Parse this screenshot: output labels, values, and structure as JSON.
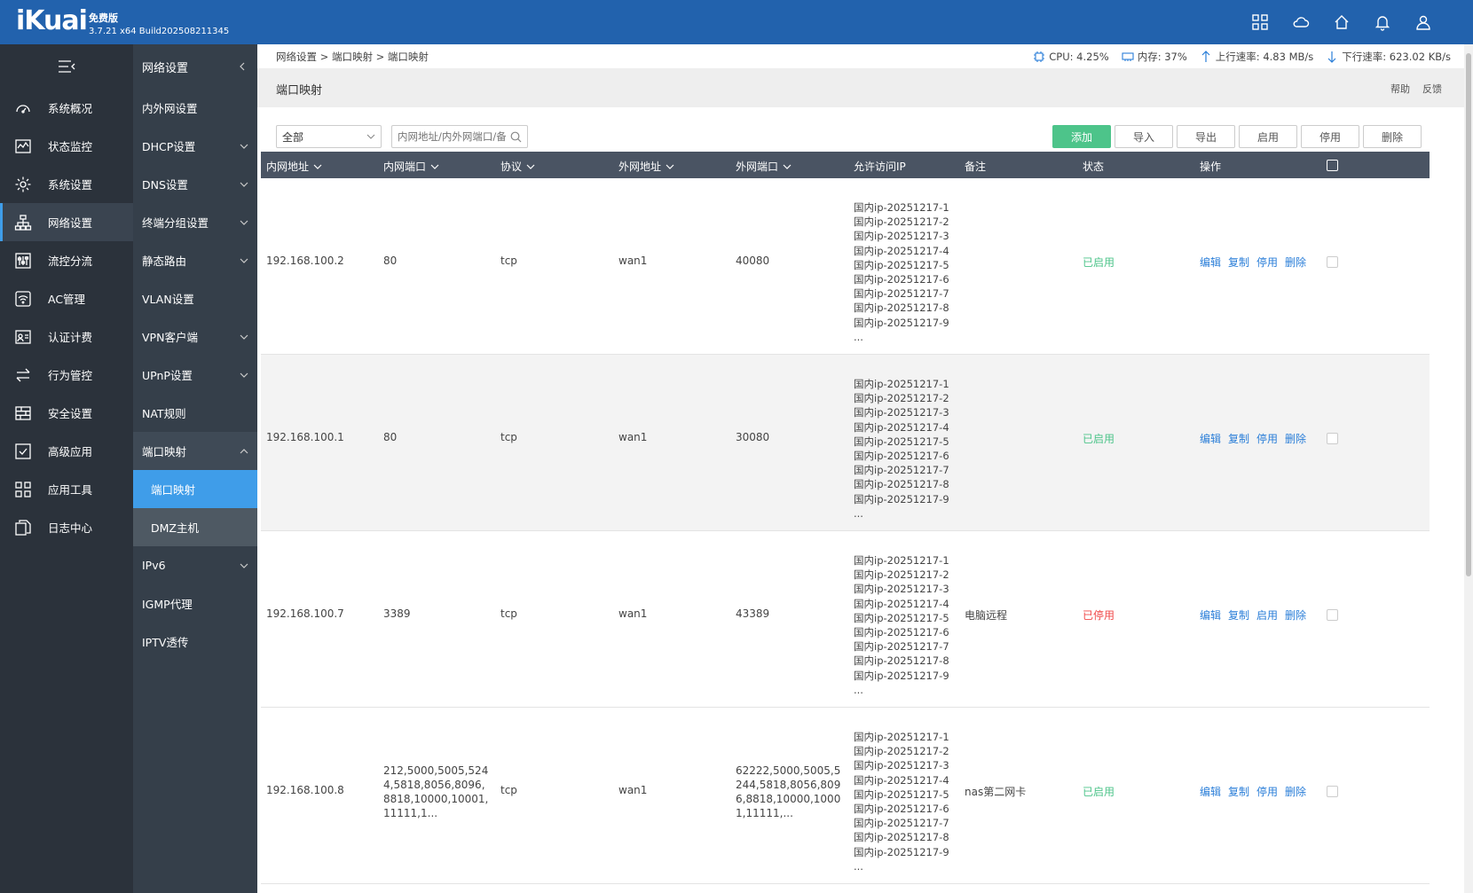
{
  "header": {
    "logo": "iKuai",
    "edition": "免费版",
    "build": "3.7.21 x64 Build202508211345"
  },
  "main_nav": [
    {
      "label": "系统概况",
      "icon": "gauge-icon"
    },
    {
      "label": "状态监控",
      "icon": "monitor-chart-icon"
    },
    {
      "label": "系统设置",
      "icon": "gear-icon"
    },
    {
      "label": "网络设置",
      "icon": "network-tree-icon",
      "active": true
    },
    {
      "label": "流控分流",
      "icon": "sliders-icon"
    },
    {
      "label": "AC管理",
      "icon": "wifi-icon"
    },
    {
      "label": "认证计费",
      "icon": "id-card-icon"
    },
    {
      "label": "行为管控",
      "icon": "swap-arrows-icon"
    },
    {
      "label": "安全设置",
      "icon": "firewall-icon"
    },
    {
      "label": "高级应用",
      "icon": "checklist-icon"
    },
    {
      "label": "应用工具",
      "icon": "apps-grid-icon"
    },
    {
      "label": "日志中心",
      "icon": "documents-icon"
    }
  ],
  "sub_nav": {
    "title": "网络设置",
    "items": [
      {
        "label": "内外网设置",
        "chevron": false
      },
      {
        "label": "DHCP设置",
        "chevron": true
      },
      {
        "label": "DNS设置",
        "chevron": true
      },
      {
        "label": "终端分组设置",
        "chevron": true
      },
      {
        "label": "静态路由",
        "chevron": true
      },
      {
        "label": "VLAN设置",
        "chevron": false
      },
      {
        "label": "VPN客户端",
        "chevron": true
      },
      {
        "label": "UPnP设置",
        "chevron": true
      },
      {
        "label": "NAT规则",
        "chevron": false
      },
      {
        "label": "端口映射",
        "chevron": true,
        "open": true
      },
      {
        "label": "端口映射",
        "sub": true,
        "selected": true
      },
      {
        "label": "DMZ主机",
        "sub": true
      },
      {
        "label": "IPv6",
        "chevron": true
      },
      {
        "label": "IGMP代理",
        "chevron": false
      },
      {
        "label": "IPTV透传",
        "chevron": false
      }
    ]
  },
  "breadcrumb": "网络设置 > 端口映射 > 端口映射",
  "stats": {
    "cpu": "CPU: 4.25%",
    "mem": "内存: 37%",
    "up": "上行速率: 4.83 MB/s",
    "down": "下行速率: 623.02 KB/s"
  },
  "page": {
    "title": "端口映射",
    "help": "帮助",
    "feedback": "反馈"
  },
  "toolbar": {
    "filter_value": "全部",
    "search_placeholder": "内网地址/内外网端口/备注",
    "add": "添加",
    "import": "导入",
    "export": "导出",
    "enable": "启用",
    "disable": "停用",
    "delete": "删除"
  },
  "columns": {
    "lan_addr": "内网地址",
    "lan_port": "内网端口",
    "protocol": "协议",
    "wan_addr": "外网地址",
    "wan_port": "外网端口",
    "allow_ip": "允许访问IP",
    "remark": "备注",
    "status": "状态",
    "ops": "操作"
  },
  "allowed_ips": [
    "国内ip-20251217-1",
    "国内ip-20251217-2",
    "国内ip-20251217-3",
    "国内ip-20251217-4",
    "国内ip-20251217-5",
    "国内ip-20251217-6",
    "国内ip-20251217-7",
    "国内ip-20251217-8",
    "国内ip-20251217-9",
    "..."
  ],
  "rows": [
    {
      "lan_addr": "192.168.100.2",
      "lan_port": "80",
      "protocol": "tcp",
      "wan_addr": "wan1",
      "wan_port": "40080",
      "remark": "",
      "status": "已启用",
      "enabled": true,
      "toggle": "停用"
    },
    {
      "lan_addr": "192.168.100.1",
      "lan_port": "80",
      "protocol": "tcp",
      "wan_addr": "wan1",
      "wan_port": "30080",
      "remark": "",
      "status": "已启用",
      "enabled": true,
      "toggle": "停用"
    },
    {
      "lan_addr": "192.168.100.7",
      "lan_port": "3389",
      "protocol": "tcp",
      "wan_addr": "wan1",
      "wan_port": "43389",
      "remark": "电脑远程",
      "status": "已停用",
      "enabled": false,
      "toggle": "启用"
    },
    {
      "lan_addr": "192.168.100.8",
      "lan_port": "212,5000,5005,5244,5818,8056,8096,8818,10000,10001,11111,1...",
      "protocol": "tcp",
      "wan_addr": "wan1",
      "wan_port": "62222,5000,5005,5244,5818,8056,8096,8818,10000,10001,11111,...",
      "remark": "nas第二网卡",
      "status": "已启用",
      "enabled": true,
      "toggle": "停用"
    }
  ],
  "row_ops": {
    "edit": "编辑",
    "copy": "复制",
    "delete": "删除"
  },
  "colors": {
    "topbar": "#2262ad",
    "accent": "#3f9de9",
    "enabled": "#4dc48a",
    "disabled": "#f04848",
    "link": "#2a7ed8"
  }
}
